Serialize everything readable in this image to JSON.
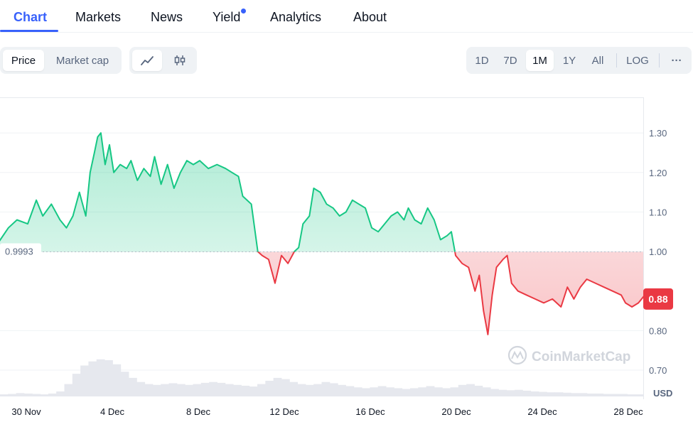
{
  "tabs": [
    {
      "label": "Chart",
      "active": true
    },
    {
      "label": "Markets"
    },
    {
      "label": "News"
    },
    {
      "label": "Yield",
      "has_dot": true
    },
    {
      "label": "Analytics"
    },
    {
      "label": "About"
    }
  ],
  "controls": {
    "metric": [
      {
        "label": "Price",
        "active": true
      },
      {
        "label": "Market cap"
      }
    ],
    "chart_type_icons": [
      "line-chart-icon",
      "candlestick-icon"
    ],
    "ranges": [
      {
        "label": "1D"
      },
      {
        "label": "7D"
      },
      {
        "label": "1M",
        "active": true
      },
      {
        "label": "1Y"
      },
      {
        "label": "All"
      }
    ],
    "log_label": "LOG",
    "more_label": "···"
  },
  "colors": {
    "accent": "#3861fb",
    "up": "#16c784",
    "down": "#ea3943",
    "grid": "#eff2f5",
    "text_muted": "#58667e"
  },
  "watermark": "CoinMarketCap",
  "chart_data": {
    "type": "area",
    "baseline": 0.9993,
    "baseline_label": "0.9993",
    "current_price": 0.88,
    "current_price_label": "0.88",
    "currency": "USD",
    "ylim": [
      0.63,
      1.39
    ],
    "y_ticks": [
      "1.30",
      "1.20",
      "1.10",
      "1.00",
      "0.80",
      "0.70"
    ],
    "x_labels": [
      "30 Nov",
      "4 Dec",
      "8 Dec",
      "12 Dec",
      "16 Dec",
      "20 Dec",
      "24 Dec",
      "28 Dec"
    ],
    "x_range_days": [
      0,
      30
    ],
    "price_series": [
      [
        -1.2,
        1.02
      ],
      [
        -0.7,
        1.06
      ],
      [
        -0.3,
        1.08
      ],
      [
        0.2,
        1.07
      ],
      [
        0.6,
        1.13
      ],
      [
        0.9,
        1.09
      ],
      [
        1.3,
        1.12
      ],
      [
        1.7,
        1.08
      ],
      [
        2.0,
        1.06
      ],
      [
        2.3,
        1.09
      ],
      [
        2.6,
        1.15
      ],
      [
        2.9,
        1.09
      ],
      [
        3.1,
        1.2
      ],
      [
        3.3,
        1.25
      ],
      [
        3.45,
        1.29
      ],
      [
        3.6,
        1.3
      ],
      [
        3.8,
        1.22
      ],
      [
        4.0,
        1.27
      ],
      [
        4.2,
        1.2
      ],
      [
        4.5,
        1.22
      ],
      [
        4.8,
        1.21
      ],
      [
        5.0,
        1.23
      ],
      [
        5.3,
        1.18
      ],
      [
        5.6,
        1.21
      ],
      [
        5.9,
        1.19
      ],
      [
        6.1,
        1.24
      ],
      [
        6.4,
        1.17
      ],
      [
        6.7,
        1.22
      ],
      [
        7.0,
        1.16
      ],
      [
        7.3,
        1.2
      ],
      [
        7.6,
        1.23
      ],
      [
        7.9,
        1.22
      ],
      [
        8.2,
        1.23
      ],
      [
        8.6,
        1.21
      ],
      [
        9.0,
        1.22
      ],
      [
        9.4,
        1.21
      ],
      [
        9.7,
        1.2
      ],
      [
        10.0,
        1.19
      ],
      [
        10.2,
        1.14
      ],
      [
        10.6,
        1.12
      ],
      [
        10.9,
        1.0
      ],
      [
        11.1,
        0.99
      ],
      [
        11.4,
        0.98
      ],
      [
        11.7,
        0.92
      ],
      [
        12.0,
        0.99
      ],
      [
        12.3,
        0.97
      ],
      [
        12.6,
        1.0
      ],
      [
        12.8,
        1.01
      ],
      [
        13.0,
        1.07
      ],
      [
        13.3,
        1.09
      ],
      [
        13.5,
        1.16
      ],
      [
        13.8,
        1.15
      ],
      [
        14.1,
        1.12
      ],
      [
        14.4,
        1.11
      ],
      [
        14.7,
        1.09
      ],
      [
        15.0,
        1.1
      ],
      [
        15.3,
        1.13
      ],
      [
        15.6,
        1.12
      ],
      [
        15.9,
        1.11
      ],
      [
        16.2,
        1.06
      ],
      [
        16.5,
        1.05
      ],
      [
        16.8,
        1.07
      ],
      [
        17.1,
        1.09
      ],
      [
        17.4,
        1.1
      ],
      [
        17.7,
        1.08
      ],
      [
        17.9,
        1.11
      ],
      [
        18.2,
        1.08
      ],
      [
        18.5,
        1.07
      ],
      [
        18.8,
        1.11
      ],
      [
        19.1,
        1.08
      ],
      [
        19.4,
        1.03
      ],
      [
        19.7,
        1.04
      ],
      [
        19.9,
        1.05
      ],
      [
        20.1,
        0.99
      ],
      [
        20.4,
        0.97
      ],
      [
        20.7,
        0.96
      ],
      [
        21.0,
        0.9
      ],
      [
        21.2,
        0.94
      ],
      [
        21.4,
        0.85
      ],
      [
        21.6,
        0.79
      ],
      [
        21.8,
        0.89
      ],
      [
        22.0,
        0.96
      ],
      [
        22.3,
        0.98
      ],
      [
        22.5,
        0.99
      ],
      [
        22.7,
        0.92
      ],
      [
        23.0,
        0.9
      ],
      [
        23.4,
        0.89
      ],
      [
        23.8,
        0.88
      ],
      [
        24.2,
        0.87
      ],
      [
        24.6,
        0.88
      ],
      [
        25.0,
        0.86
      ],
      [
        25.3,
        0.91
      ],
      [
        25.6,
        0.88
      ],
      [
        25.9,
        0.91
      ],
      [
        26.2,
        0.93
      ],
      [
        26.6,
        0.92
      ],
      [
        27.0,
        0.91
      ],
      [
        27.4,
        0.9
      ],
      [
        27.8,
        0.89
      ],
      [
        28.0,
        0.87
      ],
      [
        28.3,
        0.86
      ],
      [
        28.6,
        0.87
      ],
      [
        28.9,
        0.89
      ],
      [
        29.2,
        0.88
      ],
      [
        29.5,
        0.87
      ],
      [
        29.8,
        0.87
      ],
      [
        30.0,
        0.88
      ]
    ],
    "volume_relative": [
      0.05,
      0.06,
      0.08,
      0.07,
      0.06,
      0.05,
      0.07,
      0.12,
      0.3,
      0.55,
      0.75,
      0.85,
      0.9,
      0.88,
      0.78,
      0.6,
      0.45,
      0.35,
      0.3,
      0.28,
      0.3,
      0.32,
      0.3,
      0.28,
      0.3,
      0.33,
      0.35,
      0.33,
      0.3,
      0.28,
      0.26,
      0.24,
      0.3,
      0.38,
      0.45,
      0.42,
      0.35,
      0.3,
      0.28,
      0.3,
      0.35,
      0.32,
      0.28,
      0.25,
      0.22,
      0.2,
      0.22,
      0.25,
      0.22,
      0.2,
      0.18,
      0.2,
      0.22,
      0.25,
      0.22,
      0.2,
      0.22,
      0.28,
      0.3,
      0.26,
      0.22,
      0.18,
      0.16,
      0.15,
      0.16,
      0.14,
      0.12,
      0.11,
      0.1,
      0.1,
      0.09,
      0.08,
      0.08,
      0.07,
      0.07,
      0.06,
      0.06,
      0.06,
      0.05,
      0.05
    ]
  }
}
